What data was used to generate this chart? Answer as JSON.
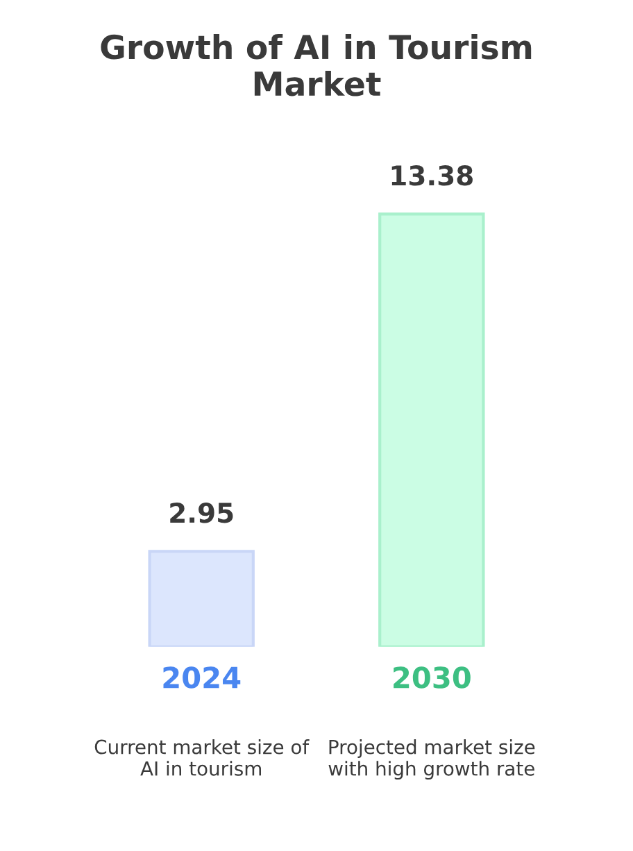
{
  "chart_data": {
    "type": "bar",
    "title": "Growth of AI in Tourism\nMarket",
    "categories": [
      "2024",
      "2030"
    ],
    "values": [
      2.95,
      13.38
    ],
    "colors": [
      "#dce6fd",
      "#cbfde4"
    ],
    "data_labels": true,
    "annotations": [
      "Current market size of\nAI in tourism",
      "Projected market size\nwith high growth rate"
    ]
  }
}
